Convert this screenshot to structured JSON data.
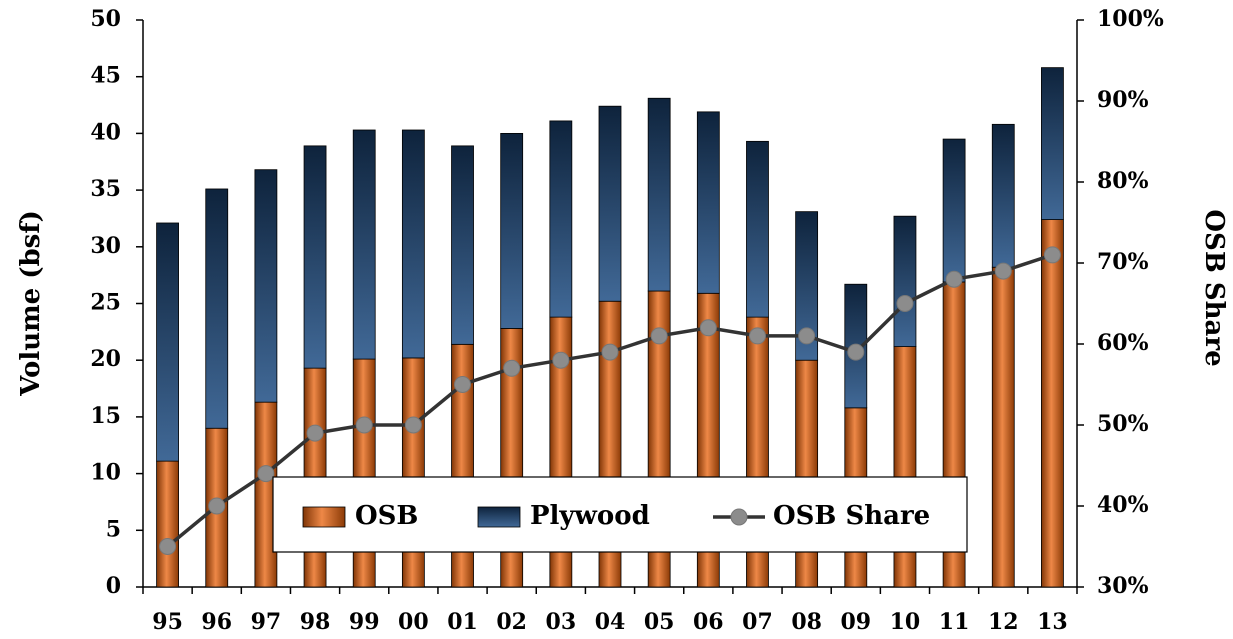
{
  "chart_data": {
    "type": "bar",
    "stacked": true,
    "categories": [
      "95",
      "96",
      "97",
      "98",
      "99",
      "00",
      "01",
      "02",
      "03",
      "04",
      "05",
      "06",
      "07",
      "08",
      "09",
      "10",
      "11",
      "12",
      "13"
    ],
    "series": [
      {
        "name": "OSB",
        "color": "#e8600a",
        "values": [
          11.1,
          14.0,
          16.3,
          19.3,
          20.1,
          20.2,
          21.4,
          22.8,
          23.8,
          25.2,
          26.1,
          25.9,
          23.8,
          20.0,
          15.8,
          21.2,
          26.9,
          28.2,
          32.4
        ]
      },
      {
        "name": "Plywood",
        "color": "#1f4e85",
        "values": [
          21.0,
          21.1,
          20.5,
          19.6,
          20.2,
          20.1,
          17.5,
          17.2,
          17.3,
          17.2,
          17.0,
          16.0,
          15.5,
          13.1,
          10.9,
          11.5,
          12.6,
          12.6,
          13.4
        ]
      },
      {
        "name": "OSB Share",
        "type": "line",
        "axis": "y2",
        "color": "#333333",
        "marker_color": "#8c8c8c",
        "values": [
          35,
          40,
          44,
          49,
          50,
          50,
          55,
          57,
          58,
          59,
          61,
          62,
          61,
          61,
          59,
          65,
          68,
          69,
          71
        ]
      }
    ],
    "y_label": "Volume (bsf)",
    "y2_label": "OSB Share",
    "ylim": [
      0,
      50
    ],
    "yticks": [
      0,
      5,
      10,
      15,
      20,
      25,
      30,
      35,
      40,
      45,
      50
    ],
    "y2lim": [
      30,
      100
    ],
    "y2ticks": [
      {
        "value": 30,
        "label": "30%"
      },
      {
        "value": 40,
        "label": "40%"
      },
      {
        "value": 50,
        "label": "50%"
      },
      {
        "value": 60,
        "label": "60%"
      },
      {
        "value": 70,
        "label": "70%"
      },
      {
        "value": 80,
        "label": "80%"
      },
      {
        "value": 90,
        "label": "90%"
      },
      {
        "value": 100,
        "label": "100%"
      }
    ],
    "grid": false,
    "legend": "bottom"
  }
}
